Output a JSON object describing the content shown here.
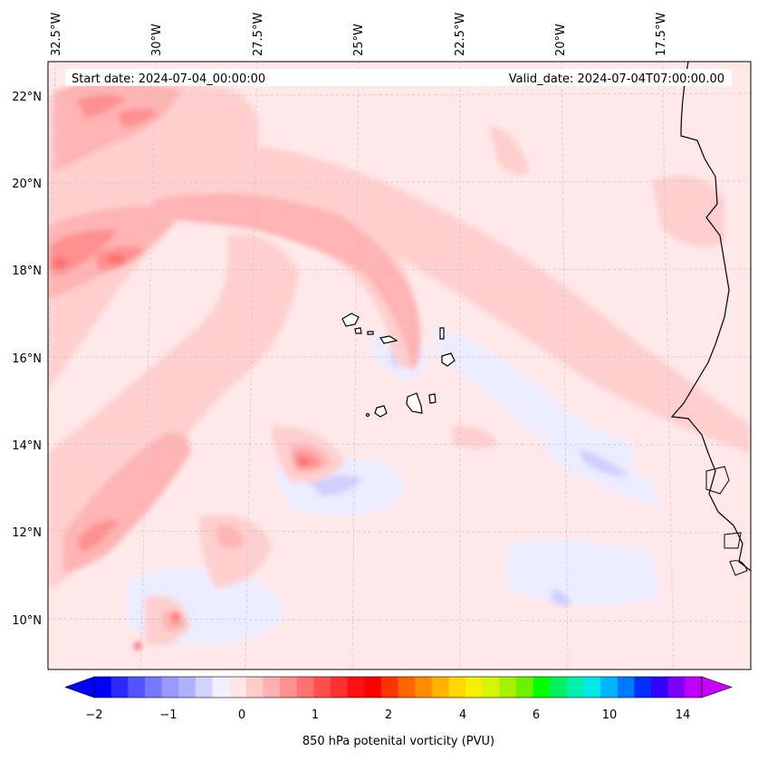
{
  "header": {
    "start_label": "Start date: 2024-07-04_00:00:00",
    "valid_label": "Valid_date: 2024-07-04T07:00:00.00"
  },
  "lon_labels": [
    "32.5°W",
    "30°W",
    "27.5°W",
    "25°W",
    "22.5°W",
    "20°W",
    "17.5°W"
  ],
  "lat_labels": [
    "22°N",
    "20°N",
    "18°N",
    "16°N",
    "14°N",
    "12°N",
    "10°N"
  ],
  "colorbar": {
    "label": "850 hPa potenital vorticity (PVU)",
    "ticks": [
      "−2",
      "−1",
      "0",
      "1",
      "2",
      "4",
      "6",
      "10",
      "14"
    ],
    "colors": [
      "#0000ff",
      "#2a2aff",
      "#5555ff",
      "#7777ff",
      "#9999ff",
      "#b0b0ff",
      "#d2d2ff",
      "#efefff",
      "#ffe6e6",
      "#ffcccc",
      "#ffb0b0",
      "#ff9090",
      "#ff7070",
      "#ff5050",
      "#ff3030",
      "#ff1010",
      "#ff0000",
      "#ff3300",
      "#ff6600",
      "#ff8c00",
      "#ffb300",
      "#ffd700",
      "#f5f000",
      "#d4f500",
      "#a8f000",
      "#6cf000",
      "#00ff00",
      "#00f060",
      "#00f0b0",
      "#00e8e8",
      "#00b4ff",
      "#0078ff",
      "#0030ff",
      "#3000ff",
      "#8000ff",
      "#c000ff"
    ],
    "extend_low_color": "#0000ff",
    "extend_high_color": "#c800ff"
  },
  "colors": {
    "background_field": "#ffe8e8",
    "light_red": "#ffcfcf",
    "mid_red": "#ffb4b4",
    "strong_red": "#ff9090",
    "peak_red": "#ff7070",
    "light_blue": "#ececff",
    "mid_blue": "#d0d0ff",
    "coast": "#000000"
  }
}
